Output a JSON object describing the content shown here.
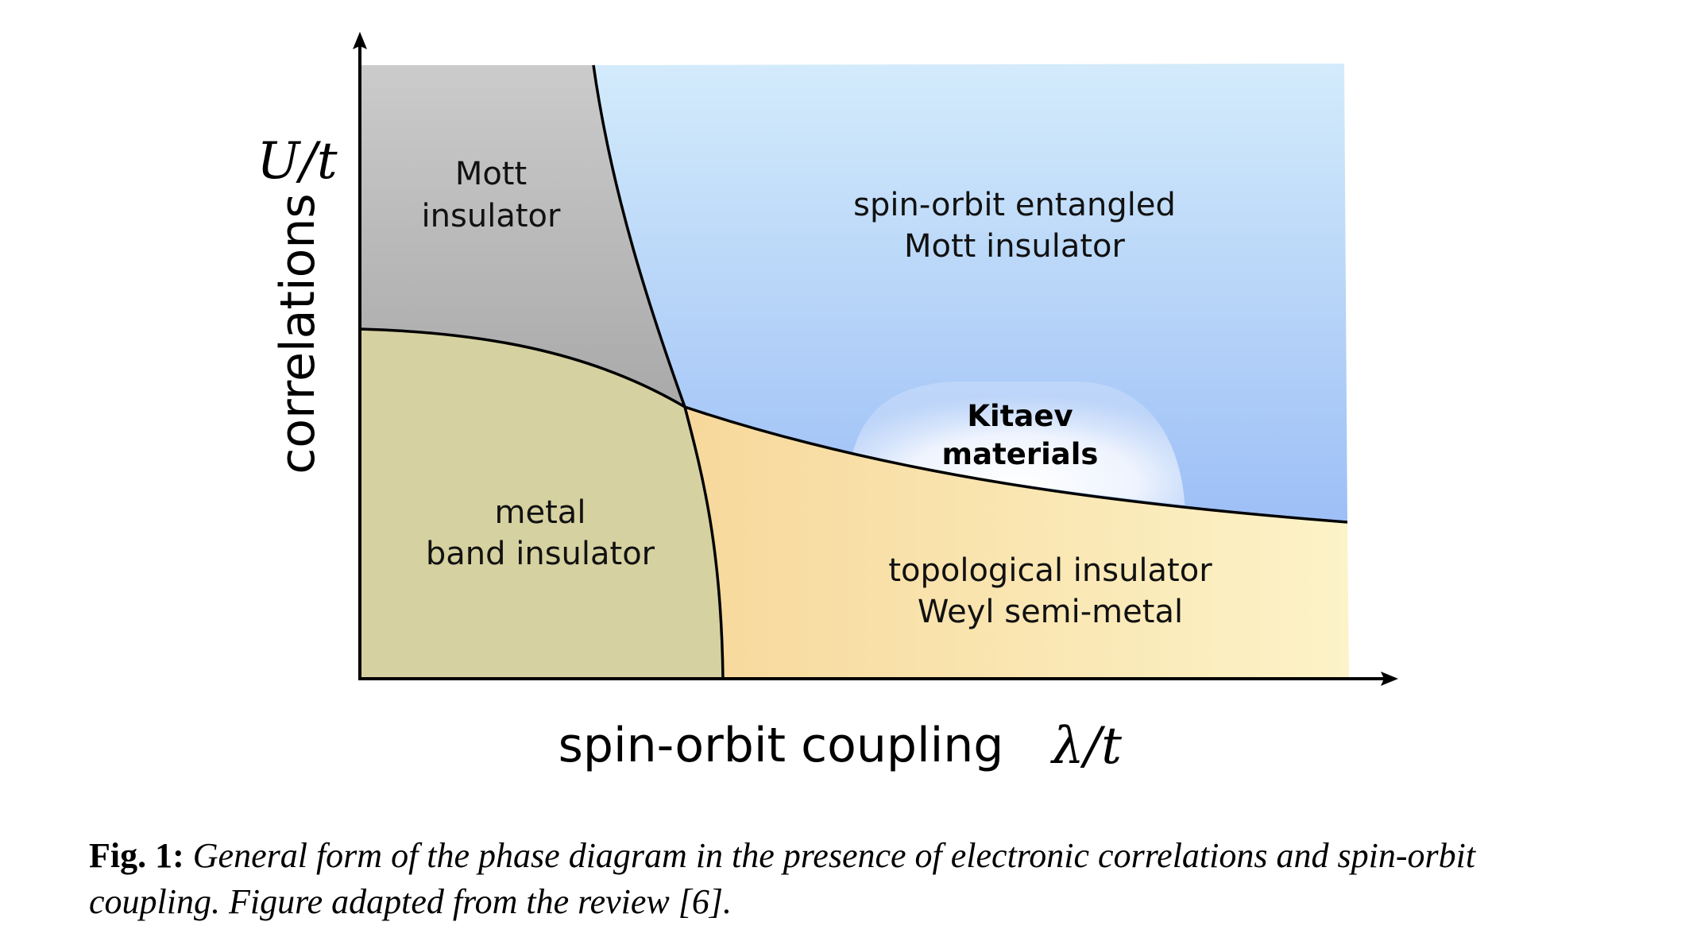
{
  "diagram": {
    "y_axis": {
      "title": "correlations",
      "symbol": "U/t"
    },
    "x_axis": {
      "title": "spin-orbit coupling",
      "symbol": "λ/t"
    },
    "regions": {
      "mott_insulator": [
        "Mott",
        "insulator"
      ],
      "spin_orbit_mott": [
        "spin-orbit entangled",
        "Mott insulator"
      ],
      "kitaev": [
        "Kitaev",
        "materials"
      ],
      "metal_band": [
        "metal",
        "band insulator"
      ],
      "topological": [
        "topological insulator",
        "Weyl semi-metal"
      ]
    },
    "colors": {
      "mott_gray_top": "#cbcbcb",
      "mott_gray_bottom": "#a9a9a9",
      "blue_top": "#d3ebfb",
      "blue_bottom": "#9dbff6",
      "olive": "#d6d1a0",
      "orange_left": "#f7d89b",
      "yellow_right": "#fbf2c6",
      "kitaev_glow": "#ffffff"
    }
  },
  "caption": {
    "label": "Fig. 1:",
    "text": "General form of the phase diagram in the presence of electronic correlations and spin-orbit coupling. Figure adapted from the review [6]."
  }
}
